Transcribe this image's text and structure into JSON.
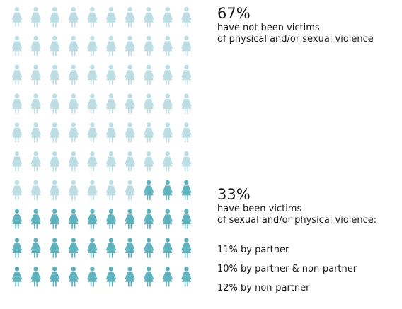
{
  "chart_data": {
    "type": "pictogram",
    "total": 100,
    "categories": [
      "have not been victims of physical and/or sexual violence",
      "have been victims of sexual and/or physical violence"
    ],
    "values": [
      67,
      33
    ],
    "colors": [
      "#bcdde3",
      "#5fb3bf"
    ],
    "grid": {
      "rows": 10,
      "cols": 10
    }
  },
  "not_victims": {
    "percent": "67%",
    "line1": "have not been victims",
    "line2": "of physical and/or sexual violence"
  },
  "victims": {
    "percent": "33%",
    "line1": "have been victims",
    "line2": "of sexual and/or physical violence:",
    "breakdown": [
      "11% by partner",
      "10% by partner & non-partner",
      "12% by non-partner"
    ]
  }
}
